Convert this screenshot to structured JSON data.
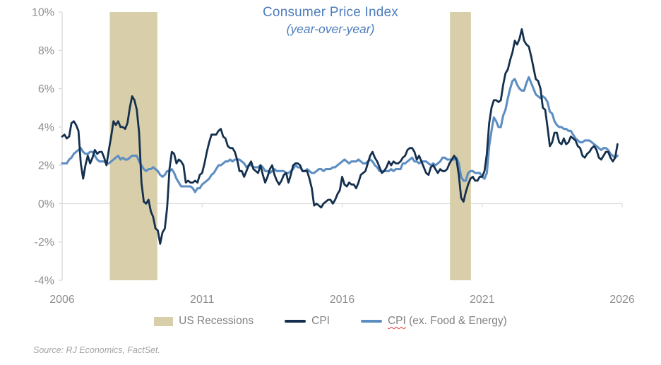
{
  "figure": {
    "title_color": "#4e7dbd",
    "source_note": "Source: RJ Economics, FactSet."
  },
  "legend": {
    "text_color": "#808080",
    "items": [
      {
        "label": "US Recessions",
        "swatch": "box",
        "color": "#d8cfaa"
      },
      {
        "label": "CPI",
        "swatch": "line",
        "color": "#15304e"
      },
      {
        "label": "CPI (ex. Food & Energy)",
        "misspelled_word": "CPI",
        "label_rest": " (ex. Food & Energy)",
        "swatch": "line",
        "color": "#5d8ec2",
        "squiggle_color": "#e03b3b"
      }
    ]
  },
  "chart_data": {
    "type": "line",
    "title": "Consumer Price Index",
    "subtitle": "(year-over-year)",
    "xlabel": "",
    "ylabel": "",
    "xlim": [
      2006,
      2026
    ],
    "ylim": [
      -4,
      10
    ],
    "x_ticks": [
      2006,
      2011,
      2016,
      2021,
      2026
    ],
    "x_tick_labels": [
      "2006",
      "2011",
      "2016",
      "2021",
      "2026"
    ],
    "y_ticks": [
      10,
      8,
      6,
      4,
      2,
      0,
      -2,
      -4
    ],
    "y_tick_labels": [
      "10%",
      "8%",
      "6%",
      "4%",
      "2%",
      "0%",
      "-2%",
      "-4%"
    ],
    "grid": "single horizontal gridline at 0% with year tick marks",
    "legend_position": "bottom",
    "axis_color": "#d9d9d9",
    "tick_label_color": "#8f8f8f",
    "recession_color": "#d8cfaa",
    "recessions": [
      {
        "start": 2007.7,
        "end": 2009.4
      },
      {
        "start": 2019.85,
        "end": 2020.6
      }
    ],
    "x_start": 2006.0,
    "x_step_years": 0.0833333,
    "x_unit": "decimal year, monthly observations",
    "series": [
      {
        "name": "CPI",
        "color": "#15304e",
        "values": [
          3.5,
          3.6,
          3.4,
          3.5,
          4.2,
          4.3,
          4.1,
          3.8,
          2.1,
          1.3,
          2.0,
          2.5,
          2.1,
          2.4,
          2.8,
          2.6,
          2.7,
          2.7,
          2.4,
          2.0,
          2.8,
          3.5,
          4.3,
          4.1,
          4.3,
          4.0,
          4.0,
          3.9,
          4.2,
          5.0,
          5.6,
          5.4,
          4.9,
          3.7,
          1.1,
          0.1,
          0.0,
          0.2,
          -0.4,
          -0.7,
          -1.3,
          -1.4,
          -2.1,
          -1.5,
          -1.3,
          -0.2,
          1.8,
          2.7,
          2.6,
          2.1,
          2.3,
          2.2,
          2.0,
          1.1,
          1.2,
          1.1,
          1.1,
          1.2,
          1.1,
          1.5,
          1.6,
          2.1,
          2.7,
          3.2,
          3.6,
          3.6,
          3.6,
          3.8,
          3.9,
          3.5,
          3.4,
          3.0,
          2.9,
          2.9,
          2.7,
          2.3,
          1.7,
          1.7,
          1.4,
          1.7,
          2.0,
          2.2,
          1.8,
          1.7,
          1.6,
          2.0,
          1.5,
          1.1,
          1.4,
          1.8,
          2.0,
          1.5,
          1.2,
          1.0,
          1.2,
          1.5,
          1.6,
          1.1,
          1.5,
          2.0,
          2.1,
          2.1,
          2.0,
          1.7,
          1.7,
          1.7,
          1.3,
          0.8,
          -0.1,
          0.0,
          -0.1,
          -0.2,
          0.0,
          0.1,
          0.2,
          0.2,
          0.0,
          0.2,
          0.5,
          0.7,
          1.4,
          1.0,
          0.9,
          1.1,
          1.0,
          1.0,
          0.8,
          1.1,
          1.5,
          1.6,
          1.7,
          2.1,
          2.5,
          2.7,
          2.4,
          2.2,
          1.9,
          1.6,
          1.7,
          1.9,
          2.2,
          2.0,
          2.2,
          2.1,
          2.1,
          2.2,
          2.4,
          2.5,
          2.8,
          2.9,
          2.9,
          2.7,
          2.3,
          2.5,
          2.2,
          1.9,
          1.6,
          1.5,
          1.9,
          2.0,
          1.8,
          1.6,
          1.8,
          1.7,
          1.7,
          1.8,
          2.1,
          2.3,
          2.5,
          2.3,
          1.5,
          0.3,
          0.1,
          0.6,
          1.0,
          1.3,
          1.4,
          1.2,
          1.2,
          1.4,
          1.4,
          1.7,
          2.6,
          4.2,
          5.0,
          5.4,
          5.4,
          5.3,
          5.4,
          6.2,
          6.8,
          7.0,
          7.5,
          7.9,
          8.5,
          8.3,
          8.6,
          9.1,
          8.5,
          8.3,
          8.2,
          7.7,
          7.1,
          6.5,
          6.4,
          6.0,
          5.0,
          4.9,
          4.0,
          3.0,
          3.2,
          3.7,
          3.7,
          3.2,
          3.1,
          3.4,
          3.1,
          3.2,
          3.5,
          3.4,
          3.3,
          3.0,
          2.9,
          2.5,
          2.4,
          2.6,
          2.7,
          2.9,
          3.0,
          2.8,
          2.4,
          2.3,
          2.5,
          2.7,
          2.7,
          2.4,
          2.2,
          2.4,
          3.1
        ]
      },
      {
        "name": "CPI (ex. Food & Energy)",
        "color": "#5d8ec2",
        "values": [
          2.1,
          2.1,
          2.1,
          2.3,
          2.4,
          2.6,
          2.7,
          2.8,
          2.9,
          2.7,
          2.6,
          2.6,
          2.7,
          2.7,
          2.5,
          2.3,
          2.2,
          2.2,
          2.2,
          2.1,
          2.1,
          2.2,
          2.3,
          2.4,
          2.5,
          2.3,
          2.4,
          2.3,
          2.3,
          2.4,
          2.5,
          2.5,
          2.5,
          2.2,
          2.0,
          1.8,
          1.7,
          1.8,
          1.8,
          1.9,
          1.8,
          1.7,
          1.5,
          1.4,
          1.5,
          1.7,
          1.7,
          1.8,
          1.6,
          1.3,
          1.1,
          0.9,
          0.9,
          0.9,
          0.9,
          0.9,
          0.8,
          0.6,
          0.8,
          0.8,
          1.0,
          1.1,
          1.2,
          1.3,
          1.5,
          1.6,
          1.8,
          2.0,
          2.0,
          2.1,
          2.2,
          2.2,
          2.3,
          2.2,
          2.3,
          2.3,
          2.3,
          2.2,
          2.1,
          1.9,
          2.0,
          2.0,
          1.9,
          1.9,
          1.9,
          2.0,
          1.9,
          1.7,
          1.7,
          1.6,
          1.7,
          1.8,
          1.7,
          1.7,
          1.7,
          1.7,
          1.6,
          1.6,
          1.7,
          1.8,
          2.0,
          1.9,
          1.9,
          1.7,
          1.7,
          1.8,
          1.7,
          1.6,
          1.6,
          1.7,
          1.8,
          1.8,
          1.7,
          1.8,
          1.8,
          1.8,
          1.9,
          1.9,
          2.0,
          2.1,
          2.2,
          2.3,
          2.2,
          2.1,
          2.2,
          2.2,
          2.2,
          2.3,
          2.2,
          2.1,
          2.1,
          2.2,
          2.3,
          2.2,
          2.0,
          1.9,
          1.7,
          1.7,
          1.7,
          1.7,
          1.7,
          1.8,
          1.7,
          1.8,
          1.8,
          1.8,
          2.1,
          2.1,
          2.2,
          2.3,
          2.4,
          2.2,
          2.2,
          2.1,
          2.2,
          2.2,
          2.2,
          2.1,
          2.0,
          2.1,
          2.0,
          2.1,
          2.2,
          2.4,
          2.4,
          2.3,
          2.3,
          2.3,
          2.3,
          2.4,
          2.1,
          1.4,
          1.2,
          1.2,
          1.6,
          1.7,
          1.7,
          1.6,
          1.6,
          1.6,
          1.4,
          1.3,
          1.6,
          3.0,
          3.8,
          4.5,
          4.3,
          4.0,
          4.0,
          4.6,
          4.9,
          5.5,
          6.0,
          6.4,
          6.5,
          6.2,
          6.0,
          5.9,
          5.9,
          6.3,
          6.6,
          6.3,
          6.0,
          5.7,
          5.6,
          5.5,
          5.6,
          5.5,
          5.3,
          4.8,
          4.7,
          4.3,
          4.1,
          4.0,
          4.0,
          3.9,
          3.9,
          3.8,
          3.8,
          3.6,
          3.4,
          3.3,
          3.2,
          3.2,
          3.3,
          3.3,
          3.3,
          3.2,
          3.1,
          3.0,
          2.9,
          2.8,
          2.9,
          2.9,
          2.8,
          2.6,
          2.5,
          2.4,
          2.5
        ]
      }
    ]
  }
}
